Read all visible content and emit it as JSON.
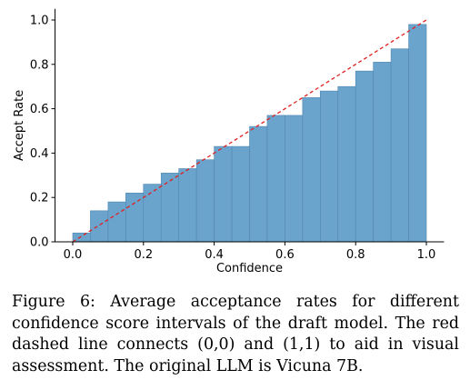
{
  "chart_data": {
    "type": "bar",
    "xlabel": "Confidence",
    "ylabel": "Accept Rate",
    "xlim": [
      -0.05,
      1.05
    ],
    "ylim": [
      0.0,
      1.05
    ],
    "xticks": [
      "0.0",
      "0.2",
      "0.4",
      "0.6",
      "0.8",
      "1.0"
    ],
    "yticks": [
      "0.0",
      "0.2",
      "0.4",
      "0.6",
      "0.8",
      "1.0"
    ],
    "bin_width": 0.05,
    "bin_starts": [
      0.0,
      0.05,
      0.1,
      0.15,
      0.2,
      0.25,
      0.3,
      0.35,
      0.4,
      0.45,
      0.5,
      0.55,
      0.6,
      0.65,
      0.7,
      0.75,
      0.8,
      0.85,
      0.9,
      0.95
    ],
    "values": [
      0.04,
      0.14,
      0.18,
      0.22,
      0.26,
      0.31,
      0.33,
      0.37,
      0.43,
      0.43,
      0.52,
      0.57,
      0.57,
      0.65,
      0.68,
      0.7,
      0.77,
      0.81,
      0.87,
      0.98
    ],
    "bar_color": "#6aa3cc",
    "reference_line": {
      "from": [
        0,
        0
      ],
      "to": [
        1,
        1
      ],
      "color": "#e02020",
      "style": "dashed"
    },
    "grid": false,
    "legend": "none"
  },
  "caption": "Figure 6: Average acceptance rates for different confidence score intervals of the draft model. The red dashed line connects (0,0) and (1,1) to aid in visual assessment. The original LLM is Vicuna 7B."
}
